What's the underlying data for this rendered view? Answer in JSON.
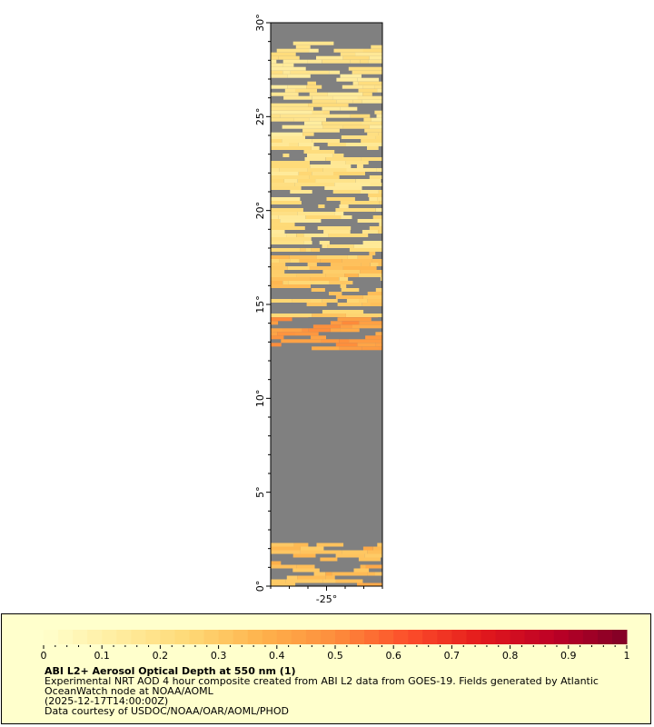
{
  "map": {
    "region": "tropical eastern Atlantic strip",
    "lon_range": [
      -28.0,
      -22.0
    ],
    "lat_range": [
      0,
      30
    ],
    "lat_tick_labels": [
      "0°",
      "5°",
      "10°",
      "15°",
      "20°",
      "25°",
      "30°"
    ],
    "lat_tick_values": [
      0,
      5,
      10,
      15,
      20,
      25,
      30
    ],
    "lon_tick_labels": [
      "-25°"
    ],
    "lon_tick_values": [
      -25
    ],
    "no_data_color": "#808080",
    "land_color": "#808080"
  },
  "colorbar": {
    "min": 0,
    "max": 1,
    "labels": [
      "0",
      "0.1",
      "0.2",
      "0.3",
      "0.4",
      "0.5",
      "0.6",
      "0.7",
      "0.8",
      "0.9",
      "1"
    ],
    "colors": [
      "#ffffcc",
      "#ffeda0",
      "#fed976",
      "#feb24c",
      "#fd8d3c",
      "#fc4e2a",
      "#e31a1c",
      "#bd0026",
      "#800026"
    ]
  },
  "caption": {
    "title": "ABI L2+ Aerosol Optical Depth at 550 nm (1)",
    "line1": "Experimental NRT AOD 4 hour composite created from ABI L2 data from GOES-19. Fields generated by Atlantic",
    "line2": "OceanWatch node at NOAA/AOML",
    "line3": "(2025-12-17T14:00:00Z)",
    "line4": "Data courtesy of USDOC/NOAA/OAR/AOML/PHOD"
  },
  "aod_bands": [
    {
      "lat_min": 0.0,
      "lat_max": 2.3,
      "aod": 0.35
    },
    {
      "lat_min": 12.6,
      "lat_max": 14.5,
      "aod": 0.45
    },
    {
      "lat_min": 14.5,
      "lat_max": 18.0,
      "aod": 0.3
    },
    {
      "lat_min": 18.0,
      "lat_max": 24.0,
      "aod": 0.2
    },
    {
      "lat_min": 24.0,
      "lat_max": 29.0,
      "aod": 0.18
    }
  ]
}
